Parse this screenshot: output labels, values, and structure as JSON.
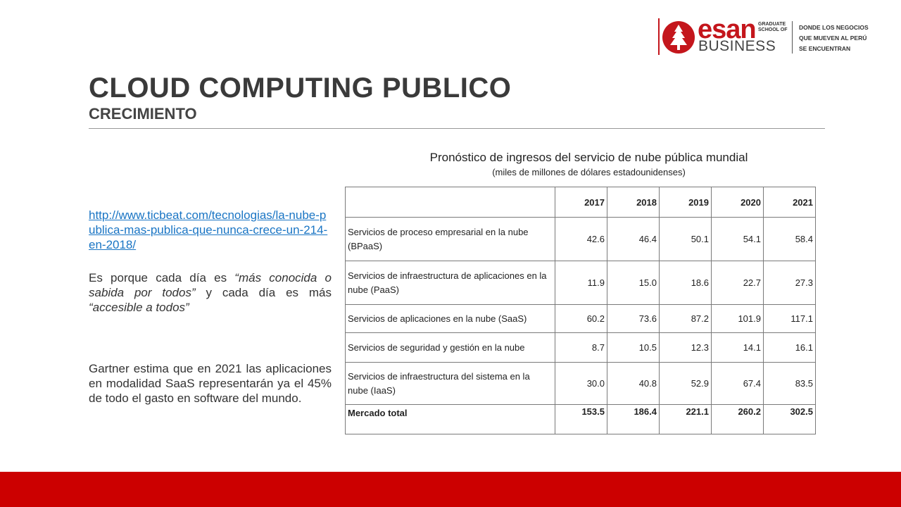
{
  "logo": {
    "brand": "esan",
    "school": [
      "GRADUATE",
      "SCHOOL OF"
    ],
    "business": "BUSINESS",
    "tagline": [
      "DONDE LOS NEGOCIOS",
      "QUE MUEVEN AL PERÚ",
      "SE ENCUENTRAN"
    ]
  },
  "slide": {
    "title": "CLOUD COMPUTING PUBLICO",
    "subtitle": "CRECIMIENTO"
  },
  "left": {
    "link": "http://www.ticbeat.com/tecnologias/la-nube-publica-mas-publica-que-nunca-crece-un-214-en-2018/",
    "p1_a": "Es porque cada día es ",
    "p1_b": "“más conocida o sabida por todos”",
    "p1_c": " y cada día es más ",
    "p1_d": "“accesible a todos”",
    "p2": "Gartner estima que en 2021 las aplicaciones en modalidad SaaS representarán ya el 45% de todo el gasto en software del mundo."
  },
  "table": {
    "caption": "Pronóstico de ingresos del servicio de nube pública mundial",
    "subcaption": "(miles de millones de dólares estadounidenses)",
    "headers": [
      "",
      "2017",
      "2018",
      "2019",
      "2020",
      "2021"
    ],
    "rows": [
      {
        "label": "Servicios de proceso empresarial en la nube (BPaaS)",
        "values": [
          "42.6",
          "46.4",
          "50.1",
          "54.1",
          "58.4"
        ]
      },
      {
        "label": "Servicios de infraestructura de aplicaciones en la nube (PaaS)",
        "values": [
          "11.9",
          "15.0",
          "18.6",
          "22.7",
          "27.3"
        ]
      },
      {
        "label": "Servicios de aplicaciones en la nube (SaaS)",
        "values": [
          "60.2",
          "73.6",
          "87.2",
          "101.9",
          "117.1"
        ]
      },
      {
        "label": "Servicios de seguridad y gestión en la nube",
        "values": [
          "8.7",
          "10.5",
          "12.3",
          "14.1",
          "16.1"
        ]
      },
      {
        "label": "Servicios de infraestructura del sistema en la nube (IaaS)",
        "values": [
          "30.0",
          "40.8",
          "52.9",
          "67.4",
          "83.5"
        ]
      },
      {
        "label": "Mercado total",
        "values": [
          "153.5",
          "186.4",
          "221.1",
          "260.2",
          "302.5"
        ]
      }
    ]
  },
  "colors": {
    "brand_red": "#cc0000",
    "link_blue": "#1a75c4"
  }
}
